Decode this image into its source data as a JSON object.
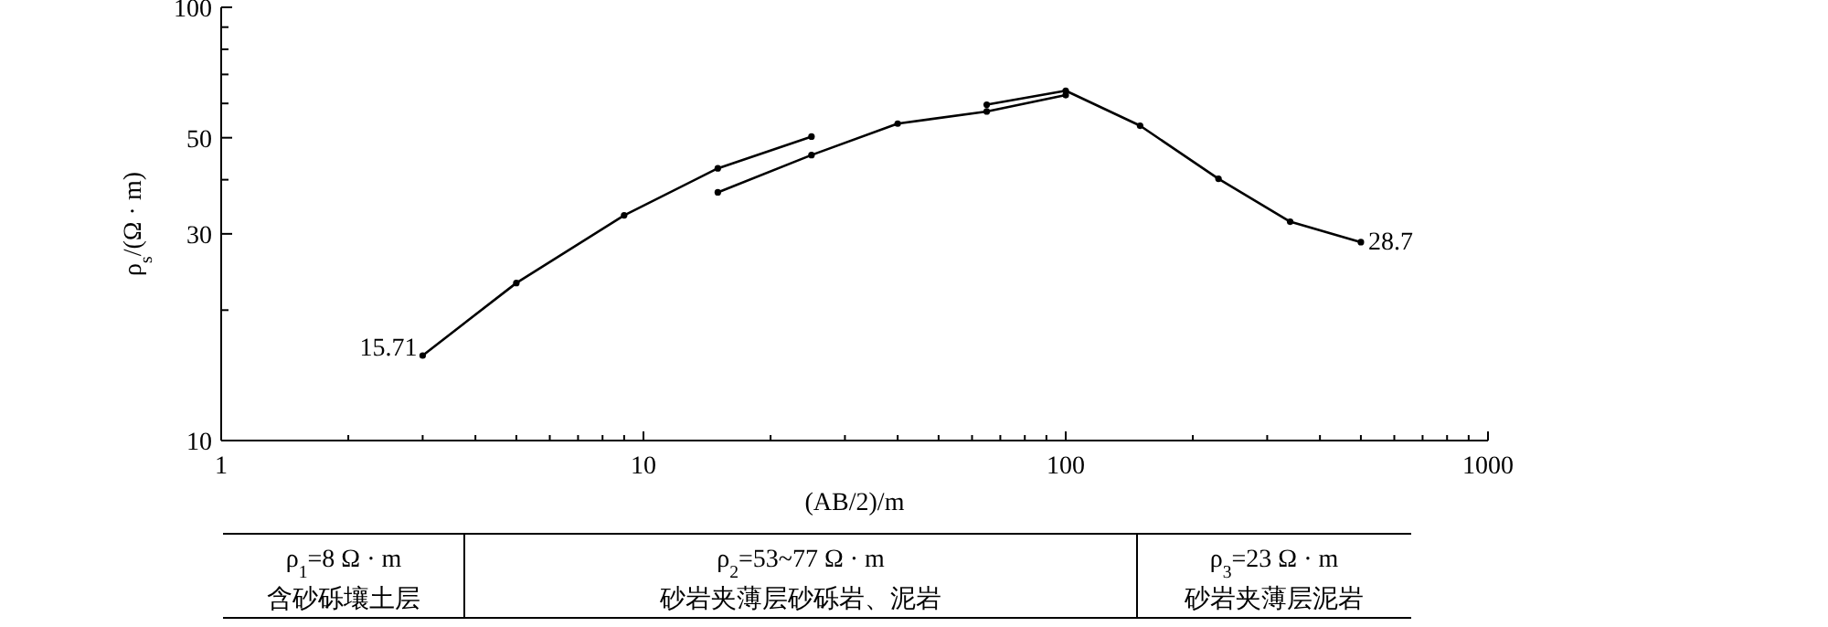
{
  "chart_data": {
    "type": "line",
    "xlabel": "(AB/2)/m",
    "ylabel": "ρ$_{s}$/(Ω · m)",
    "log": "xy",
    "xlim": [
      1,
      1000
    ],
    "ylim": [
      10,
      100
    ],
    "xticks": [
      1,
      {
        "value": 2,
        "label": null
      },
      {
        "value": 3,
        "label": null
      },
      {
        "value": 4,
        "label": null
      },
      {
        "value": 5,
        "label": null
      },
      {
        "value": 6,
        "label": null
      },
      {
        "value": 7,
        "label": null
      },
      {
        "value": 8,
        "label": null
      },
      {
        "value": 9,
        "label": null
      },
      10,
      {
        "value": 20,
        "label": null
      },
      {
        "value": 30,
        "label": null
      },
      {
        "value": 40,
        "label": null
      },
      {
        "value": 50,
        "label": null
      },
      {
        "value": 60,
        "label": null
      },
      {
        "value": 70,
        "label": null
      },
      {
        "value": 80,
        "label": null
      },
      {
        "value": 90,
        "label": null
      },
      100,
      {
        "value": 200,
        "label": null
      },
      {
        "value": 300,
        "label": null
      },
      {
        "value": 400,
        "label": null
      },
      {
        "value": 500,
        "label": null
      },
      {
        "value": 600,
        "label": null
      },
      {
        "value": 700,
        "label": null
      },
      {
        "value": 800,
        "label": null
      },
      {
        "value": 900,
        "label": null
      },
      1000
    ],
    "yticks": [
      10,
      {
        "value": 20,
        "label": null
      },
      30,
      {
        "value": 40,
        "label": null
      },
      50,
      {
        "value": 60,
        "label": null
      },
      {
        "value": 70,
        "label": null
      },
      {
        "value": 80,
        "label": null
      },
      {
        "value": 90,
        "label": null
      },
      100
    ],
    "marker": "circle",
    "line_style": "solid",
    "series": [
      {
        "color": "#000000",
        "x": [
          3,
          5,
          9,
          15,
          25
        ],
        "values": [
          15.71,
          23.1,
          33.1,
          42.5,
          50.3
        ]
      },
      {
        "color": "#000000",
        "x": [
          15,
          25,
          40,
          65,
          100
        ],
        "values": [
          37.4,
          45.6,
          53.9,
          57.5,
          62.7
        ]
      },
      {
        "color": "#000000",
        "x": [
          65,
          100,
          150,
          230,
          340,
          500
        ],
        "values": [
          59.6,
          64.2,
          53.3,
          40.2,
          32,
          28.7
        ]
      }
    ],
    "annotations": [
      {
        "text": "15.71",
        "x": 3,
        "y": 15.71
      },
      {
        "text": "28.7",
        "x": 500,
        "y": 28.7
      },
      "ρ$_{1}$=8 Ω · m",
      "含砂砾壤土层",
      "ρ$_{2}$=53~77 Ω · m",
      "砂岩夹薄层砂砾岩、泥岩",
      "ρ$_{3}$=23 Ω · m",
      "砂岩夹薄层泥岩"
    ]
  }
}
